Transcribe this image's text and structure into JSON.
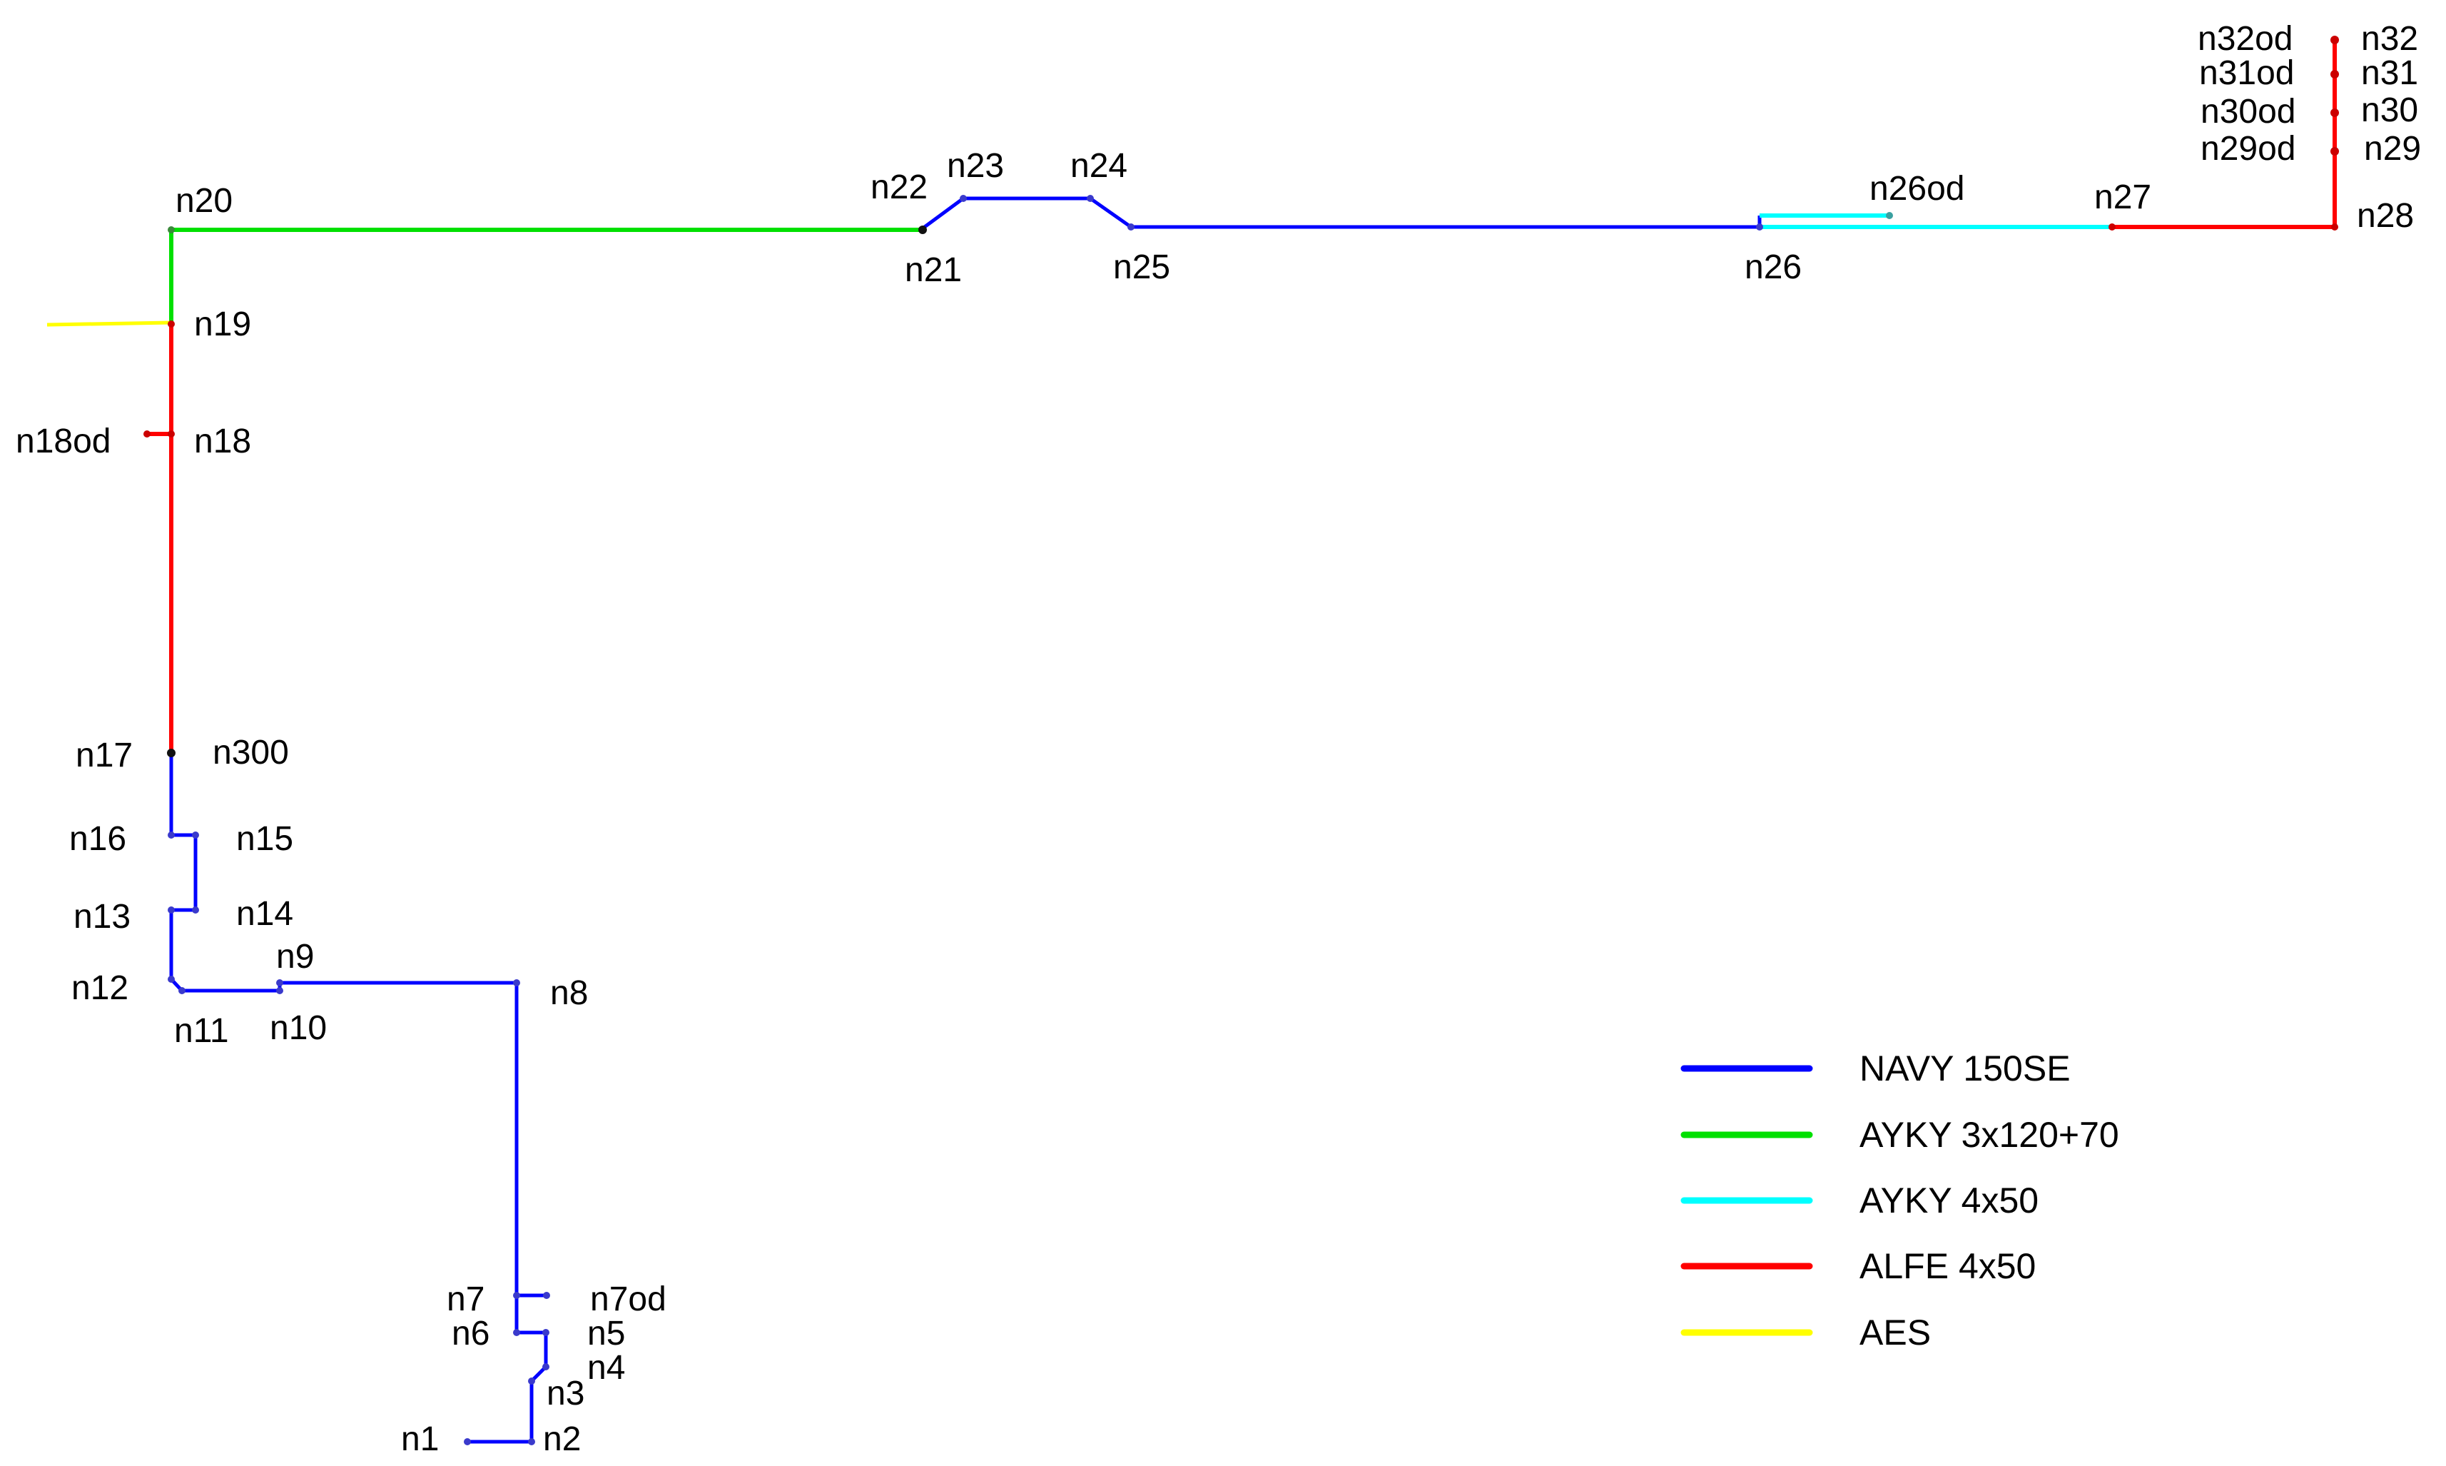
{
  "colors": {
    "navy": "#0000ff",
    "ayky_main": "#00e000",
    "ayky_small": "#00ffff",
    "alfe": "#ff0000",
    "aes": "#ffff00",
    "node": "#3a3acc"
  },
  "legend": [
    {
      "key": "navy",
      "label": "NAVY 150SE"
    },
    {
      "key": "ayky_main",
      "label": "AYKY 3x120+70"
    },
    {
      "key": "ayky_small",
      "label": "AYKY 4x50"
    },
    {
      "key": "alfe",
      "label": "ALFE 4x50"
    },
    {
      "key": "aes",
      "label": "AES"
    }
  ],
  "nodes": {
    "n1": "n1",
    "n2": "n2",
    "n3": "n3",
    "n4": "n4",
    "n5": "n5",
    "n6": "n6",
    "n7": "n7",
    "n7od": "n7od",
    "n8": "n8",
    "n9": "n9",
    "n10": "n10",
    "n11": "n11",
    "n12": "n12",
    "n13": "n13",
    "n14": "n14",
    "n15": "n15",
    "n16": "n16",
    "n17": "n17",
    "n300": "n300",
    "n18": "n18",
    "n18od": "n18od",
    "n19": "n19",
    "n20": "n20",
    "n21": "n21",
    "n22": "n22",
    "n23": "n23",
    "n24": "n24",
    "n25": "n25",
    "n26": "n26",
    "n26od": "n26od",
    "n27": "n27",
    "n28": "n28",
    "n29": "n29",
    "n29od": "n29od",
    "n30": "n30",
    "n30od": "n30od",
    "n31": "n31",
    "n31od": "n31od",
    "n32": "n32",
    "n32od": "n32od"
  }
}
